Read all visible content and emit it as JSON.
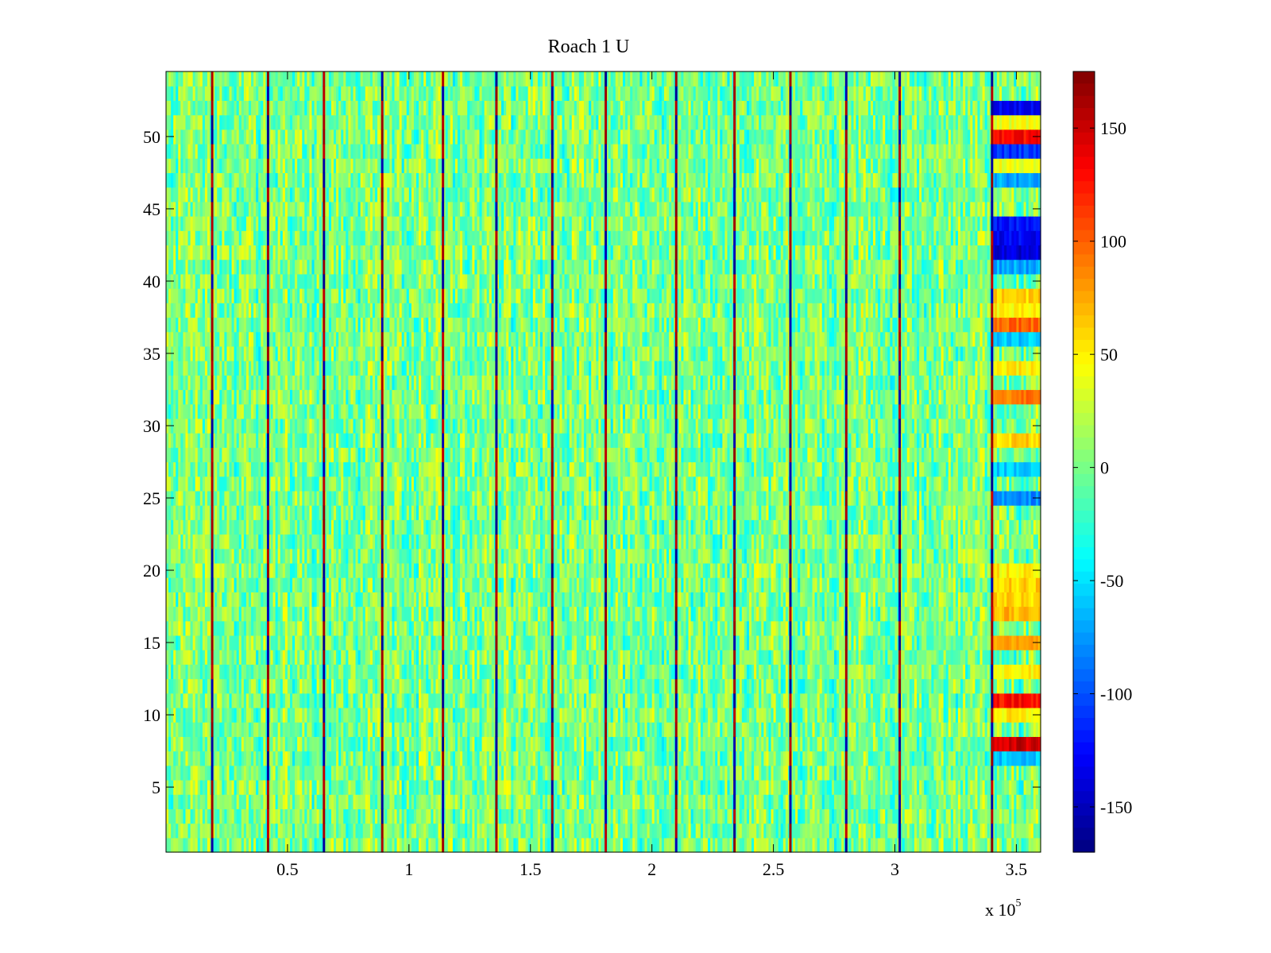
{
  "chart_data": {
    "type": "heatmap",
    "title": "Roach 1 U",
    "xlabel": "",
    "ylabel": "",
    "x_exponent_label": "x 10",
    "x_exponent_power": "5",
    "xlim": [
      0,
      360000
    ],
    "ylim": [
      0.5,
      54.5
    ],
    "rows": 54,
    "columns": 360,
    "x_ticks": [
      {
        "value": 50000,
        "label": "0.5"
      },
      {
        "value": 100000,
        "label": "1"
      },
      {
        "value": 150000,
        "label": "1.5"
      },
      {
        "value": 200000,
        "label": "2"
      },
      {
        "value": 250000,
        "label": "2.5"
      },
      {
        "value": 300000,
        "label": "3"
      },
      {
        "value": 350000,
        "label": "3.5"
      }
    ],
    "y_ticks": [
      {
        "value": 5,
        "label": "5"
      },
      {
        "value": 10,
        "label": "10"
      },
      {
        "value": 15,
        "label": "15"
      },
      {
        "value": 20,
        "label": "20"
      },
      {
        "value": 25,
        "label": "25"
      },
      {
        "value": 30,
        "label": "30"
      },
      {
        "value": 35,
        "label": "35"
      },
      {
        "value": 40,
        "label": "40"
      },
      {
        "value": 45,
        "label": "45"
      },
      {
        "value": 50,
        "label": "50"
      }
    ],
    "colorbar": {
      "colormap": "jet",
      "clim": [
        -170,
        175
      ],
      "ticks": [
        {
          "value": 150,
          "label": "150"
        },
        {
          "value": 100,
          "label": "100"
        },
        {
          "value": 50,
          "label": "50"
        },
        {
          "value": 0,
          "label": "0"
        },
        {
          "value": -50,
          "label": "-50"
        },
        {
          "value": -100,
          "label": "-100"
        },
        {
          "value": -150,
          "label": "-150"
        }
      ]
    },
    "background_value_range": [
      -40,
      40
    ],
    "periodic_phase_wrap_lines_x": [
      19000,
      42000,
      65000,
      89000,
      114000,
      136000,
      159000,
      181000,
      210000,
      234000,
      257000,
      280000,
      302000,
      340000
    ],
    "right_edge_band": {
      "x_range": [
        340000,
        360000
      ],
      "row_values": [
        {
          "row": 52,
          "value": -130
        },
        {
          "row": 51,
          "value": 40
        },
        {
          "row": 50,
          "value": 130
        },
        {
          "row": 49,
          "value": -110
        },
        {
          "row": 48,
          "value": 40
        },
        {
          "row": 47,
          "value": -70
        },
        {
          "row": 44,
          "value": -120
        },
        {
          "row": 43,
          "value": -130
        },
        {
          "row": 42,
          "value": -140
        },
        {
          "row": 41,
          "value": -70
        },
        {
          "row": 39,
          "value": 60
        },
        {
          "row": 38,
          "value": 50
        },
        {
          "row": 37,
          "value": 100
        },
        {
          "row": 36,
          "value": -60
        },
        {
          "row": 34,
          "value": 50
        },
        {
          "row": 32,
          "value": 90
        },
        {
          "row": 29,
          "value": 60
        },
        {
          "row": 27,
          "value": -60
        },
        {
          "row": 25,
          "value": -80
        },
        {
          "row": 20,
          "value": 50
        },
        {
          "row": 19,
          "value": 60
        },
        {
          "row": 18,
          "value": 60
        },
        {
          "row": 17,
          "value": 70
        },
        {
          "row": 15,
          "value": 70
        },
        {
          "row": 13,
          "value": 50
        },
        {
          "row": 11,
          "value": 130
        },
        {
          "row": 10,
          "value": 50
        },
        {
          "row": 8,
          "value": 150
        },
        {
          "row": 7,
          "value": -60
        }
      ]
    },
    "grid": false
  }
}
